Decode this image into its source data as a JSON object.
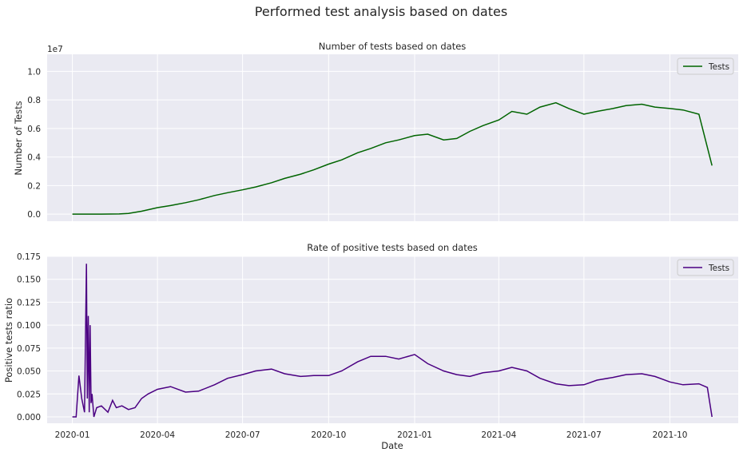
{
  "figure": {
    "suptitle": "Performed test analysis based on dates"
  },
  "chart_data": [
    {
      "type": "line",
      "title": "Number of tests based on dates",
      "xlabel": "",
      "ylabel": "Number of Tests",
      "y_offset_label": "1e7",
      "xlim": [
        "2019-12-05",
        "2021-12-13"
      ],
      "ylim": [
        -0.05,
        1.12
      ],
      "x_tick_labels": [
        "2020-01",
        "2020-04",
        "2020-07",
        "2020-10",
        "2021-01",
        "2021-04",
        "2021-07",
        "2021-10"
      ],
      "y_tick_labels": [
        "0.0",
        "0.2",
        "0.4",
        "0.6",
        "0.8",
        "1.0"
      ],
      "grid": true,
      "legend": {
        "position": "top-right",
        "entries": [
          "Tests"
        ]
      },
      "series": [
        {
          "name": "Tests",
          "color": "#006400",
          "x": [
            "2020-01-01",
            "2020-02-01",
            "2020-02-20",
            "2020-03-01",
            "2020-03-15",
            "2020-04-01",
            "2020-04-15",
            "2020-05-01",
            "2020-05-15",
            "2020-06-01",
            "2020-06-15",
            "2020-07-01",
            "2020-07-15",
            "2020-08-01",
            "2020-08-15",
            "2020-09-01",
            "2020-09-15",
            "2020-10-01",
            "2020-10-15",
            "2020-11-01",
            "2020-11-15",
            "2020-12-01",
            "2020-12-15",
            "2021-01-01",
            "2021-01-15",
            "2021-02-01",
            "2021-02-15",
            "2021-03-01",
            "2021-03-15",
            "2021-04-01",
            "2021-04-15",
            "2021-05-01",
            "2021-05-15",
            "2021-06-01",
            "2021-06-15",
            "2021-07-01",
            "2021-07-15",
            "2021-08-01",
            "2021-08-15",
            "2021-09-01",
            "2021-09-15",
            "2021-10-01",
            "2021-10-15",
            "2021-11-01",
            "2021-11-15"
          ],
          "values": [
            0.0,
            0.0,
            0.001,
            0.005,
            0.02,
            0.045,
            0.06,
            0.08,
            0.1,
            0.13,
            0.15,
            0.17,
            0.19,
            0.22,
            0.25,
            0.28,
            0.31,
            0.35,
            0.38,
            0.43,
            0.46,
            0.5,
            0.52,
            0.55,
            0.56,
            0.52,
            0.53,
            0.58,
            0.62,
            0.66,
            0.72,
            0.7,
            0.75,
            0.78,
            0.74,
            0.7,
            0.72,
            0.74,
            0.76,
            0.77,
            0.75,
            0.74,
            0.73,
            0.7,
            0.34
          ]
        }
      ]
    },
    {
      "type": "line",
      "title": "Rate of positive tests based on dates",
      "xlabel": "Date",
      "ylabel": "Positive tests ratio",
      "xlim": [
        "2019-12-05",
        "2021-12-13"
      ],
      "ylim": [
        -0.007,
        0.175
      ],
      "x_tick_labels": [
        "2020-01",
        "2020-04",
        "2020-07",
        "2020-10",
        "2021-01",
        "2021-04",
        "2021-07",
        "2021-10"
      ],
      "y_tick_labels": [
        "0.000",
        "0.025",
        "0.050",
        "0.075",
        "0.100",
        "0.125",
        "0.150",
        "0.175"
      ],
      "grid": true,
      "legend": {
        "position": "top-right",
        "entries": [
          "Tests"
        ]
      },
      "series": [
        {
          "name": "Tests",
          "color": "#4b0082",
          "x": [
            "2020-01-01",
            "2020-01-05",
            "2020-01-08",
            "2020-01-11",
            "2020-01-14",
            "2020-01-16",
            "2020-01-17",
            "2020-01-18",
            "2020-01-19",
            "2020-01-20",
            "2020-01-21",
            "2020-01-22",
            "2020-01-24",
            "2020-01-27",
            "2020-02-01",
            "2020-02-08",
            "2020-02-13",
            "2020-02-17",
            "2020-02-23",
            "2020-03-01",
            "2020-03-08",
            "2020-03-15",
            "2020-03-22",
            "2020-04-01",
            "2020-04-15",
            "2020-05-01",
            "2020-05-15",
            "2020-06-01",
            "2020-06-15",
            "2020-07-01",
            "2020-07-15",
            "2020-08-01",
            "2020-08-15",
            "2020-09-01",
            "2020-09-15",
            "2020-10-01",
            "2020-10-15",
            "2020-11-01",
            "2020-11-15",
            "2020-12-01",
            "2020-12-15",
            "2021-01-01",
            "2021-01-15",
            "2021-02-01",
            "2021-02-15",
            "2021-03-01",
            "2021-03-15",
            "2021-04-01",
            "2021-04-15",
            "2021-05-01",
            "2021-05-15",
            "2021-06-01",
            "2021-06-15",
            "2021-07-01",
            "2021-07-15",
            "2021-08-01",
            "2021-08-15",
            "2021-09-01",
            "2021-09-15",
            "2021-10-01",
            "2021-10-15",
            "2021-11-01",
            "2021-11-10",
            "2021-11-15"
          ],
          "values": [
            0.0,
            0.0,
            0.045,
            0.02,
            0.005,
            0.167,
            0.02,
            0.11,
            0.005,
            0.1,
            0.015,
            0.025,
            0.0,
            0.01,
            0.012,
            0.005,
            0.018,
            0.01,
            0.012,
            0.008,
            0.01,
            0.02,
            0.025,
            0.03,
            0.033,
            0.027,
            0.028,
            0.035,
            0.042,
            0.046,
            0.05,
            0.052,
            0.047,
            0.044,
            0.045,
            0.045,
            0.05,
            0.06,
            0.066,
            0.066,
            0.063,
            0.068,
            0.058,
            0.05,
            0.046,
            0.044,
            0.048,
            0.05,
            0.054,
            0.05,
            0.042,
            0.036,
            0.034,
            0.035,
            0.04,
            0.043,
            0.046,
            0.047,
            0.044,
            0.038,
            0.035,
            0.036,
            0.032,
            0.0
          ]
        }
      ]
    }
  ]
}
